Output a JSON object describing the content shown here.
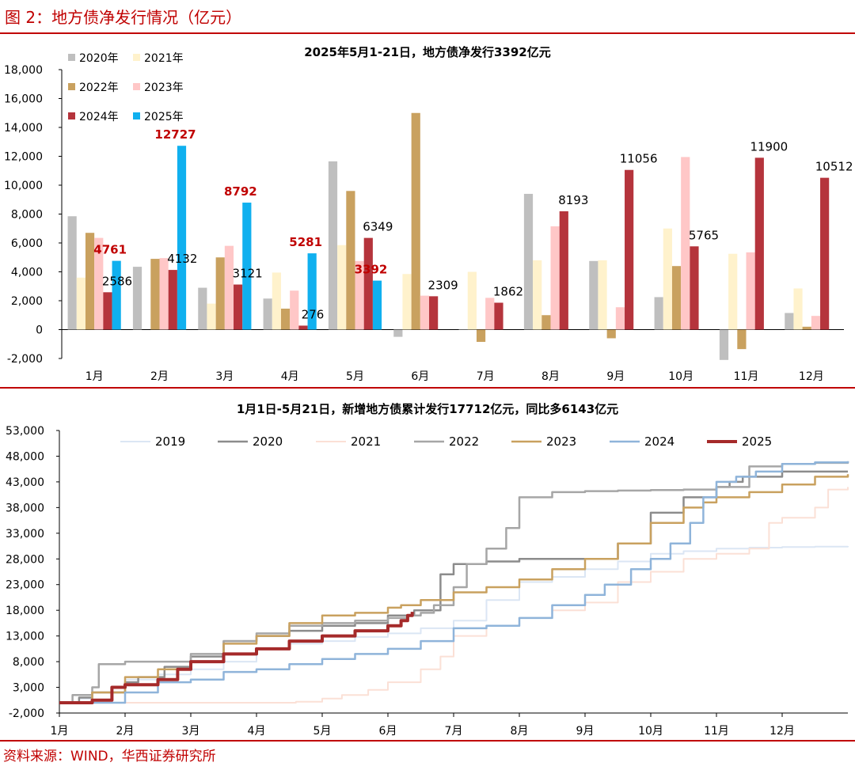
{
  "figure_title": "图 2：地方债净发行情况（亿元）",
  "source": "资料来源：WIND，华西证券研究所",
  "chart_data": [
    {
      "type": "bar",
      "title": "2025年5月1-21日，地方债净发行3392亿元",
      "categories": [
        "1月",
        "2月",
        "3月",
        "4月",
        "5月",
        "6月",
        "7月",
        "8月",
        "9月",
        "10月",
        "11月",
        "12月"
      ],
      "ylim": [
        -2000,
        18000
      ],
      "yticks": [
        "-2,000",
        "0",
        "2,000",
        "4,000",
        "6,000",
        "8,000",
        "10,000",
        "12,000",
        "14,000",
        "16,000",
        "18,000"
      ],
      "ytick_values": [
        -2000,
        0,
        2000,
        4000,
        6000,
        8000,
        10000,
        12000,
        14000,
        16000,
        18000
      ],
      "grid": false,
      "legend_position": "top-left",
      "series": [
        {
          "name": "2020年",
          "color": "#bfbfbf",
          "values": [
            7850,
            4350,
            2900,
            2150,
            11650,
            -500,
            0,
            9400,
            4750,
            2250,
            -2100,
            1150
          ]
        },
        {
          "name": "2021年",
          "color": "#fff2cc",
          "values": [
            3600,
            null,
            1800,
            3950,
            5850,
            3850,
            4000,
            4800,
            4800,
            7000,
            5250,
            2850
          ]
        },
        {
          "name": "2022年",
          "color": "#c9a15f",
          "values": [
            6700,
            4900,
            5000,
            1450,
            9600,
            15000,
            -850,
            1000,
            -600,
            4400,
            -1350,
            200
          ]
        },
        {
          "name": "2023年",
          "color": "#ffc7c7",
          "values": [
            6350,
            4950,
            5800,
            2700,
            4750,
            2350,
            2200,
            7150,
            1550,
            11950,
            5350,
            950
          ]
        },
        {
          "name": "2024年",
          "color": "#b5343c",
          "values": [
            2586,
            4132,
            3121,
            276,
            6349,
            2309,
            1862,
            8193,
            11056,
            5765,
            11900,
            10512
          ]
        },
        {
          "name": "2025年",
          "color": "#10b0ef",
          "values": [
            4761,
            12727,
            8792,
            5281,
            3392,
            null,
            null,
            null,
            null,
            null,
            null,
            null
          ]
        }
      ],
      "data_labels": [
        {
          "series": "2024年",
          "category": "1月",
          "text": "2586",
          "color": "#000000",
          "bold": false
        },
        {
          "series": "2024年",
          "category": "2月",
          "text": "4132",
          "color": "#000000",
          "bold": false
        },
        {
          "series": "2024年",
          "category": "3月",
          "text": "3121",
          "color": "#000000",
          "bold": false
        },
        {
          "series": "2024年",
          "category": "4月",
          "text": "276",
          "color": "#000000",
          "bold": false
        },
        {
          "series": "2024年",
          "category": "5月",
          "text": "6349",
          "color": "#000000",
          "bold": false
        },
        {
          "series": "2024年",
          "category": "6月",
          "text": "2309",
          "color": "#000000",
          "bold": false
        },
        {
          "series": "2024年",
          "category": "7月",
          "text": "1862",
          "color": "#000000",
          "bold": false
        },
        {
          "series": "2024年",
          "category": "8月",
          "text": "8193",
          "color": "#000000",
          "bold": false
        },
        {
          "series": "2024年",
          "category": "9月",
          "text": "11056",
          "color": "#000000",
          "bold": false
        },
        {
          "series": "2024年",
          "category": "10月",
          "text": "5765",
          "color": "#000000",
          "bold": false
        },
        {
          "series": "2024年",
          "category": "11月",
          "text": "11900",
          "color": "#000000",
          "bold": false
        },
        {
          "series": "2024年",
          "category": "12月",
          "text": "10512",
          "color": "#000000",
          "bold": false
        },
        {
          "series": "2025年",
          "category": "1月",
          "text": "4761",
          "color": "#c00000",
          "bold": true
        },
        {
          "series": "2025年",
          "category": "2月",
          "text": "12727",
          "color": "#c00000",
          "bold": true
        },
        {
          "series": "2025年",
          "category": "3月",
          "text": "8792",
          "color": "#c00000",
          "bold": true
        },
        {
          "series": "2025年",
          "category": "4月",
          "text": "5281",
          "color": "#c00000",
          "bold": true
        },
        {
          "series": "2025年",
          "category": "5月",
          "text": "3392",
          "color": "#c00000",
          "bold": true
        }
      ]
    },
    {
      "type": "line",
      "title": "1月1日-5月21日，新增地方债累计发行17712亿元，同比多6143亿元",
      "categories": [
        "1月",
        "2月",
        "3月",
        "4月",
        "5月",
        "6月",
        "7月",
        "8月",
        "9月",
        "10月",
        "11月",
        "12月"
      ],
      "ylim": [
        -2000,
        53000
      ],
      "yticks": [
        "-2,000",
        "3,000",
        "8,000",
        "13,000",
        "18,000",
        "23,000",
        "28,000",
        "33,000",
        "38,000",
        "43,000",
        "48,000",
        "53,000"
      ],
      "ytick_values": [
        -2000,
        3000,
        8000,
        13000,
        18000,
        23000,
        28000,
        33000,
        38000,
        43000,
        48000,
        53000
      ],
      "grid": false,
      "legend_position": "top",
      "x_unit": "month",
      "series": [
        {
          "name": "2019",
          "color": "#dbe6f4",
          "width": 2,
          "x": [
            0,
            0.3,
            0.5,
            1,
            1.5,
            2,
            2.5,
            3,
            3.5,
            4,
            4.5,
            5,
            5.5,
            6,
            6.5,
            7,
            7.5,
            8,
            8.5,
            9,
            9.5,
            10,
            10.5,
            11,
            11.5,
            12
          ],
          "y": [
            0,
            800,
            2000,
            4500,
            5500,
            6500,
            8000,
            10500,
            11500,
            12000,
            12800,
            13500,
            14500,
            16000,
            20000,
            23500,
            24500,
            26000,
            27500,
            29000,
            29500,
            30000,
            30200,
            30300,
            30400,
            30500
          ]
        },
        {
          "name": "2020",
          "color": "#8c8c8c",
          "width": 2.5,
          "x": [
            0,
            0.3,
            0.5,
            1,
            1.2,
            1.6,
            2,
            2.5,
            3,
            3.5,
            4,
            4.5,
            5,
            5.4,
            5.8,
            6,
            6.5,
            7,
            7.5,
            8,
            8.5,
            9,
            9.5,
            10,
            10.2,
            10.4,
            11,
            11.5,
            12
          ],
          "y": [
            0,
            1000,
            2000,
            4000,
            5000,
            7000,
            9000,
            12000,
            13000,
            14000,
            15000,
            15500,
            17000,
            18000,
            25000,
            27000,
            27500,
            28000,
            28000,
            28000,
            31000,
            37000,
            40000,
            42000,
            43000,
            44000,
            45000,
            45000,
            45000
          ]
        },
        {
          "name": "2021",
          "color": "#fbe0d6",
          "width": 2,
          "x": [
            0,
            0.5,
            1,
            1.5,
            2,
            2.5,
            3,
            3.3,
            3.6,
            4,
            4.3,
            4.7,
            5,
            5.5,
            5.8,
            6,
            6.5,
            7,
            7.5,
            8,
            8.5,
            9,
            9.5,
            10,
            10.5,
            10.8,
            11,
            11.5,
            11.7,
            12
          ],
          "y": [
            0,
            0,
            0,
            0,
            0,
            0,
            0,
            0,
            200,
            800,
            1500,
            2500,
            4000,
            6500,
            9000,
            13000,
            15000,
            16500,
            18000,
            19500,
            23500,
            25500,
            28000,
            29000,
            30000,
            35000,
            36000,
            38000,
            41500,
            42000
          ]
        },
        {
          "name": "2022",
          "color": "#a6a6a6",
          "width": 2.5,
          "x": [
            0,
            0.2,
            0.5,
            0.6,
            1,
            1.5,
            2,
            2.5,
            3,
            3.5,
            4,
            4.5,
            5,
            5.3,
            5.5,
            5.7,
            6,
            6.2,
            6.5,
            6.8,
            7,
            7.5,
            8,
            8.5,
            9,
            9.5,
            10,
            10.5,
            11,
            11.5,
            12
          ],
          "y": [
            0,
            1500,
            3000,
            7500,
            8000,
            8000,
            9500,
            12000,
            13500,
            15000,
            15500,
            16000,
            16500,
            17000,
            17500,
            19000,
            22500,
            27000,
            30000,
            34000,
            40000,
            41000,
            41200,
            41300,
            41400,
            41500,
            42000,
            46000,
            46500,
            46700,
            47000
          ]
        },
        {
          "name": "2023",
          "color": "#c9a15f",
          "width": 2.5,
          "x": [
            0,
            0.5,
            1,
            1.5,
            2,
            2.5,
            3,
            3.5,
            4,
            4.5,
            5,
            5.2,
            5.5,
            6,
            6.5,
            7,
            7.5,
            8,
            8.5,
            9,
            9.5,
            9.8,
            10,
            10.5,
            11,
            11.5,
            12
          ],
          "y": [
            0,
            2000,
            5000,
            6500,
            8000,
            11500,
            13000,
            15500,
            17000,
            17500,
            18500,
            19000,
            20000,
            21500,
            22500,
            24000,
            26000,
            28000,
            31000,
            35000,
            38000,
            39000,
            40000,
            41000,
            42500,
            44000,
            44500
          ]
        },
        {
          "name": "2024",
          "color": "#8fb4da",
          "width": 2.5,
          "x": [
            0,
            0.5,
            1,
            1.5,
            2,
            2.5,
            3,
            3.5,
            4,
            4.5,
            5,
            5.5,
            6,
            6.5,
            7,
            7.5,
            8,
            8.3,
            8.7,
            9,
            9.3,
            9.6,
            9.8,
            10,
            10.3,
            10.6,
            11,
            11.5,
            12
          ],
          "y": [
            0,
            0,
            2000,
            4000,
            4500,
            6000,
            6500,
            7500,
            8500,
            9500,
            10500,
            12000,
            14500,
            15000,
            16500,
            19000,
            21000,
            23000,
            26000,
            28000,
            31000,
            35000,
            40000,
            43000,
            44000,
            45000,
            46500,
            46800,
            47000
          ]
        },
        {
          "name": "2025",
          "color": "#a52a2a",
          "width": 4,
          "x": [
            0,
            0.3,
            0.5,
            0.8,
            1,
            1.5,
            1.8,
            2,
            2.5,
            3,
            3.5,
            4,
            4.5,
            5,
            5.2,
            5.3,
            5.37
          ],
          "y": [
            0,
            0,
            500,
            3000,
            3500,
            4500,
            6500,
            8000,
            9500,
            10500,
            12000,
            13000,
            14000,
            15000,
            16000,
            17000,
            17712
          ]
        }
      ]
    }
  ]
}
